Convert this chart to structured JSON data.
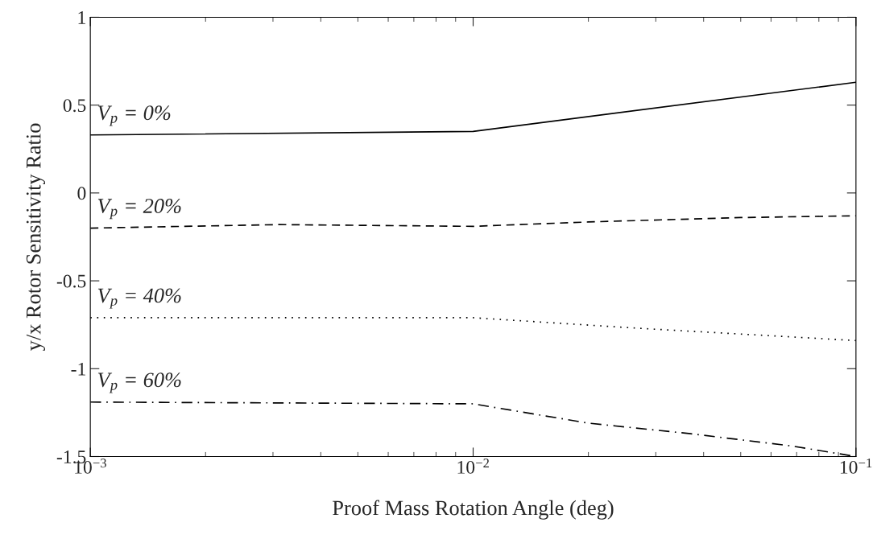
{
  "chart_data": {
    "type": "line",
    "xlabel": "Proof Mass Rotation Angle (deg)",
    "ylabel": "y/x Rotor Sensitivity Ratio",
    "log": "x",
    "grid": false,
    "legend": false,
    "xlim": [
      0.001,
      0.1
    ],
    "xticks": [
      {
        "value": 0.001,
        "label": "10$^{−3}$"
      },
      {
        "value": 0.01,
        "label": "10$^{−2}$"
      },
      {
        "value": 0.1,
        "label": "10$^{−1}$"
      }
    ],
    "ylim": [
      -1.5,
      1
    ],
    "yticks": [
      -1.5,
      -1,
      -0.5,
      0,
      0.5,
      1
    ],
    "series": [
      {
        "name": "V$_{p}$ = 0%",
        "color": "#000000",
        "line_style": "solid",
        "x": [
          0.001,
          0.01,
          0.1
        ],
        "values": [
          0.33,
          0.35,
          0.63
        ]
      },
      {
        "name": "V$_{p}$ = 20%",
        "color": "#000000",
        "line_style": "dashed",
        "x": [
          0.001,
          0.0031,
          0.01,
          0.02,
          0.05,
          0.1
        ],
        "values": [
          -0.2,
          -0.18,
          -0.19,
          -0.165,
          -0.14,
          -0.13
        ]
      },
      {
        "name": "V$_{p}$ = 40%",
        "color": "#000000",
        "line_style": "dotted",
        "x": [
          0.001,
          0.01,
          0.027,
          0.1
        ],
        "values": [
          -0.71,
          -0.71,
          -0.77,
          -0.84
        ]
      },
      {
        "name": "V$_{p}$ = 60%",
        "color": "#000000",
        "line_style": "dashdot",
        "x": [
          0.001,
          0.01,
          0.02,
          0.037,
          0.068,
          0.1
        ],
        "values": [
          -1.19,
          -1.2,
          -1.31,
          -1.37,
          -1.44,
          -1.5
        ]
      }
    ]
  }
}
